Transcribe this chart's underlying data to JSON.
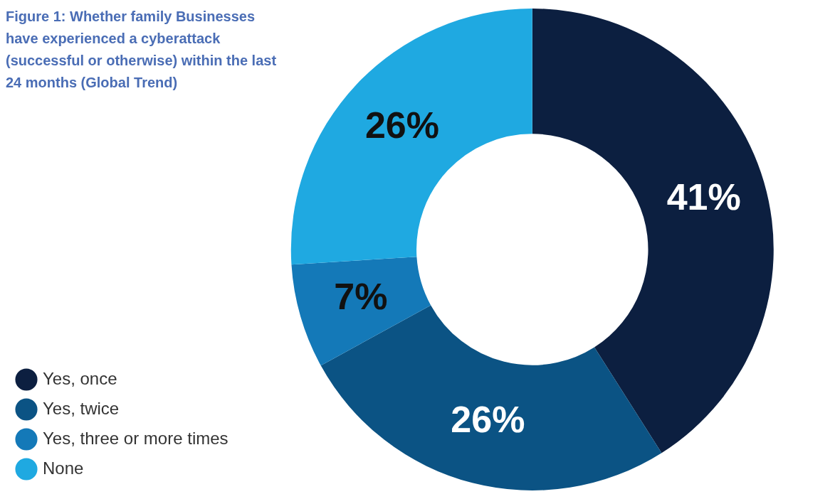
{
  "chart_data": {
    "type": "donut",
    "title": "Figure 1:  Whether family Businesses have experienced a cyberattack (successful or otherwise) within the last 24 months (Global Trend)",
    "categories": [
      "Yes, once",
      "Yes, twice",
      "Yes, three or more times",
      "None"
    ],
    "values": [
      41,
      26,
      7,
      26
    ],
    "colors": [
      "#0c1f40",
      "#0b5384",
      "#1479b8",
      "#1fa9e1"
    ],
    "value_labels": [
      "41%",
      "26%",
      "7%",
      "26%"
    ],
    "legend": "bottom left"
  }
}
